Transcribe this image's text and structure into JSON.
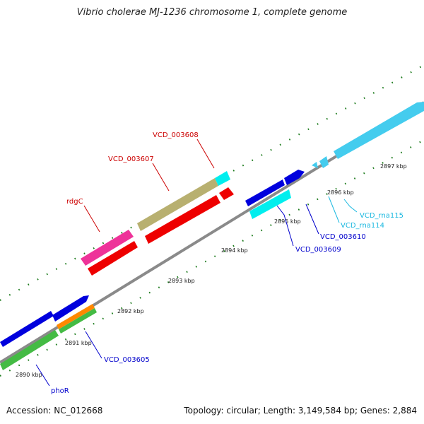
{
  "title": "Vibrio cholerae MJ-1236 chromosome 1, complete genome",
  "footer": {
    "accession": "Accession: NC_012668",
    "topology": "Topology: circular; Length: 3,149,584 bp; Genes: 2,884"
  },
  "tick_labels": [
    "2890 kbp",
    "2891 kbp",
    "2892 kbp",
    "2893 kbp",
    "2894 kbp",
    "2895 kbp",
    "2896 kbp",
    "2897 kbp"
  ],
  "features": [
    {
      "name": "phoR",
      "color": "#0000cc"
    },
    {
      "name": "VCD_003605",
      "color": "#0000cc"
    },
    {
      "name": "rdgC",
      "color": "#cc0000"
    },
    {
      "name": "VCD_003607",
      "color": "#cc0000"
    },
    {
      "name": "VCD_003608",
      "color": "#cc0000"
    },
    {
      "name": "VCD_003609",
      "color": "#0000cc"
    },
    {
      "name": "VCD_003610",
      "color": "#0000cc"
    },
    {
      "name": "VCD_rna114",
      "color": "#1ab8e0"
    },
    {
      "name": "VCD_rna115",
      "color": "#1ab8e0"
    }
  ],
  "colors": {
    "backbone": "#8a8a8a",
    "dots": "#1a7a1a",
    "blue": "#0000dd",
    "green": "#44bb44",
    "orange": "#ff8800",
    "magenta": "#ee3399",
    "red": "#ee0000",
    "khaki": "#b8b070",
    "cyan": "#00eeee",
    "skyblue": "#44ccee"
  }
}
